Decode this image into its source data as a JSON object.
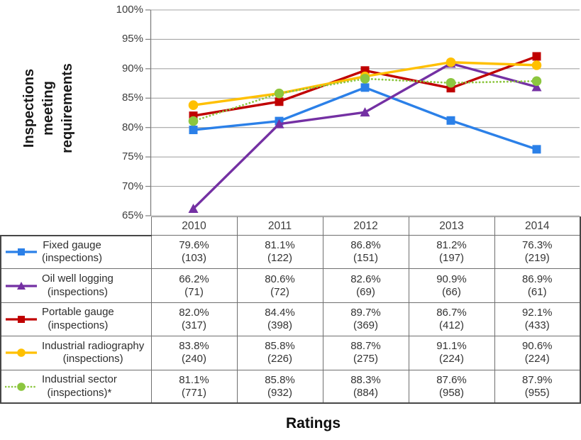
{
  "figure": {
    "background": "#ffffff",
    "gridline_color": "#a6a6a6",
    "axis_color": "#808080",
    "table_border_color": "#6f6f6f"
  },
  "chart_data": {
    "type": "line",
    "title": "",
    "xlabel": "Ratings",
    "ylabel": "Inspections meeting requirements",
    "categories": [
      "2010",
      "2011",
      "2012",
      "2013",
      "2014"
    ],
    "ylim": [
      65,
      100
    ],
    "ytick_labels": [
      "100%",
      "95%",
      "90%",
      "85%",
      "80%",
      "75%",
      "70%",
      "65%"
    ],
    "grid": "horizontal",
    "legend_position": "table-rows-left",
    "series": [
      {
        "name": "Fixed gauge",
        "qualifier": "(inspections)",
        "color": "#2b80e8",
        "marker": "square",
        "line_style": "solid",
        "values": [
          79.6,
          81.1,
          86.8,
          81.2,
          76.3
        ],
        "counts": [
          103,
          122,
          151,
          197,
          219
        ]
      },
      {
        "name": "Oil well logging",
        "qualifier": "(inspections)",
        "color": "#7430a3",
        "marker": "triangle",
        "line_style": "solid",
        "values": [
          66.2,
          80.6,
          82.6,
          90.9,
          86.9
        ],
        "counts": [
          71,
          72,
          69,
          66,
          61
        ]
      },
      {
        "name": "Portable gauge",
        "qualifier": "(inspections)",
        "color": "#c00000",
        "marker": "square",
        "line_style": "solid",
        "values": [
          82.0,
          84.4,
          89.7,
          86.7,
          92.1
        ],
        "counts": [
          317,
          398,
          369,
          412,
          433
        ]
      },
      {
        "name": "Industrial radiography",
        "qualifier": "(inspections)",
        "color": "#ffc000",
        "marker": "circle",
        "line_style": "solid",
        "values": [
          83.8,
          85.8,
          88.7,
          91.1,
          90.6
        ],
        "counts": [
          240,
          226,
          275,
          224,
          224
        ]
      },
      {
        "name": "Industrial sector",
        "qualifier": "(inspections)*",
        "color": "#8cc63f",
        "marker": "circle",
        "line_style": "dotted",
        "values": [
          81.1,
          85.8,
          88.3,
          87.6,
          87.9
        ],
        "counts": [
          771,
          932,
          884,
          958,
          955
        ]
      }
    ]
  }
}
